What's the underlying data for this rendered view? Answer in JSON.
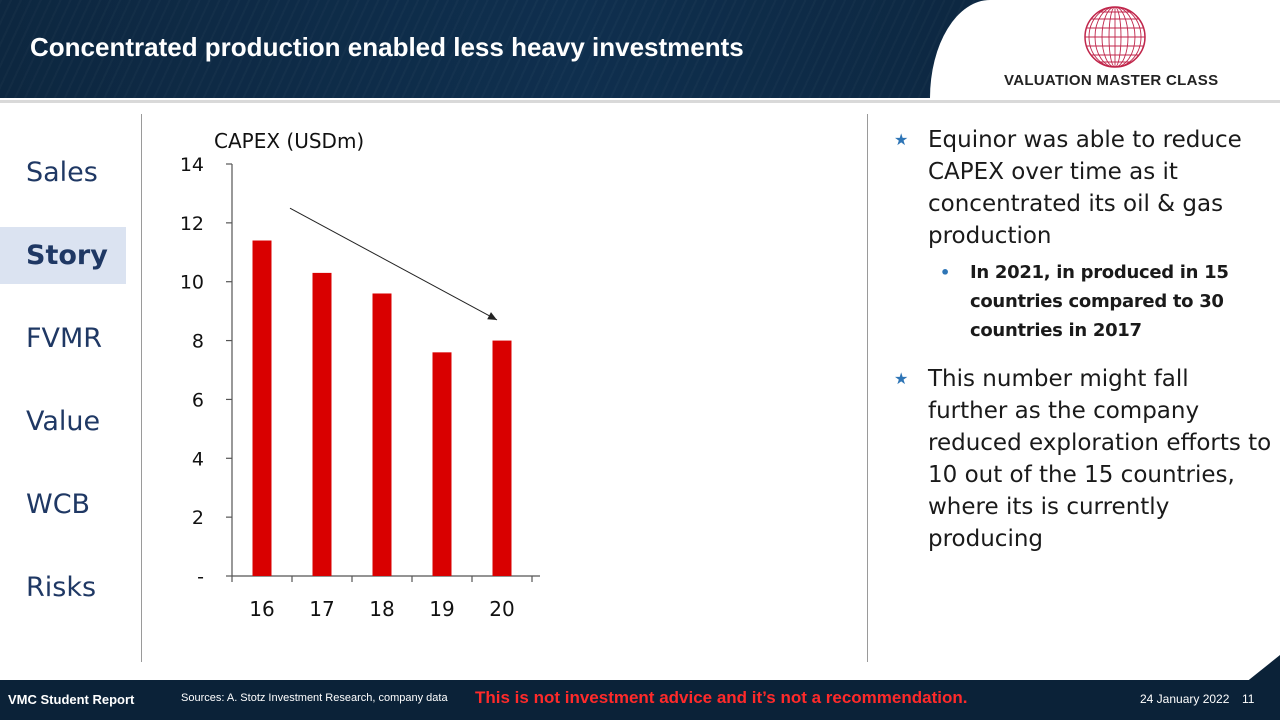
{
  "header": {
    "title": "Concentrated production enabled less heavy investments",
    "logo_text": "VALUATION MASTER CLASS"
  },
  "nav": {
    "items": [
      {
        "label": "Sales",
        "active": false
      },
      {
        "label": "Story",
        "active": true
      },
      {
        "label": "FVMR",
        "active": false
      },
      {
        "label": "Value",
        "active": false
      },
      {
        "label": "WCB",
        "active": false
      },
      {
        "label": "Risks",
        "active": false
      }
    ]
  },
  "chart_data": {
    "type": "bar",
    "title": "CAPEX (USDm)",
    "categories": [
      "16",
      "17",
      "18",
      "19",
      "20"
    ],
    "values": [
      11.4,
      10.3,
      9.6,
      7.6,
      8.0
    ],
    "ylim": [
      0,
      14
    ],
    "yticks": [
      0,
      2,
      4,
      6,
      8,
      10,
      12,
      14
    ],
    "ytick_labels": [
      "-",
      "2",
      "4",
      "6",
      "8",
      "10",
      "12",
      "14"
    ],
    "bar_color": "#d90000",
    "annotation": "downward trend arrow",
    "grid": false
  },
  "bullets": {
    "point1": "Equinor was able to reduce CAPEX over time as it concentrated its oil & gas production",
    "sub1": "In 2021, in produced in 15 countries compared to 30 countries in 2017",
    "point2": "This number might fall further as the company reduced exploration efforts to 10 out of the 15 countries, where its is currently producing",
    "star_icon": "star-icon",
    "dot_icon": "dot-icon",
    "accent_color": "#2e75b6"
  },
  "footer": {
    "report_label": "VMC Student Report",
    "sources": "Sources: A. Stotz Investment Research, company data",
    "disclaimer": "This is not investment advice and it’s not a recommendation.",
    "date": "24 January 2022",
    "page_number": "11"
  }
}
